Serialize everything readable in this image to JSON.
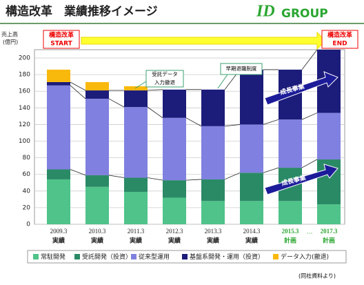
{
  "chart_data": {
    "type": "stacked-bar",
    "title": "構造改革　業績推移イメージ",
    "logo": [
      "ID",
      "GROUP"
    ],
    "y_label": [
      "売上高",
      "(億円)"
    ],
    "categories": [
      "2009.3",
      "2010.3",
      "2011.3",
      "2012.3",
      "2013.3",
      "2014.3",
      "2015.3",
      "2017.3"
    ],
    "category_notes": [
      "実績",
      "実績",
      "実績",
      "実績",
      "実績",
      "実績",
      "計画",
      "計画"
    ],
    "gap_label": "…",
    "series": [
      {
        "name": "常駐開発",
        "color": "#4fc38a",
        "values": [
          54,
          45,
          39,
          32,
          28,
          28,
          28,
          24
        ]
      },
      {
        "name": "受託開発（投資）",
        "color": "#2a8a66",
        "values": [
          12,
          14,
          17,
          21,
          26,
          34,
          40,
          54
        ]
      },
      {
        "name": "従来型運用",
        "color": "#8080e0",
        "values": [
          101,
          92,
          85,
          75,
          64,
          58,
          58,
          56
        ]
      },
      {
        "name": "基盤系開発・運用（投資）",
        "color": "#1c1c7a",
        "values": [
          4,
          10,
          20,
          34,
          44,
          66,
          60,
          76
        ]
      },
      {
        "name": "データ入力(撤退)",
        "color": "#f9b90c",
        "values": [
          15,
          10,
          5,
          0,
          0,
          0,
          0,
          0
        ]
      }
    ],
    "ylim": [
      0,
      210
    ],
    "yticks": [
      0,
      20,
      40,
      60,
      80,
      100,
      120,
      140,
      160,
      180,
      200
    ],
    "start_label": [
      "構造改革",
      "START"
    ],
    "end_label": [
      "構造改革",
      "END"
    ],
    "annotation_withdraw": [
      "受託データ",
      "入力撤退"
    ],
    "annotation_retire": "早期退職制度",
    "growth_labels": [
      "成長事業",
      "成長事業"
    ],
    "source": "(同社資料より)"
  }
}
